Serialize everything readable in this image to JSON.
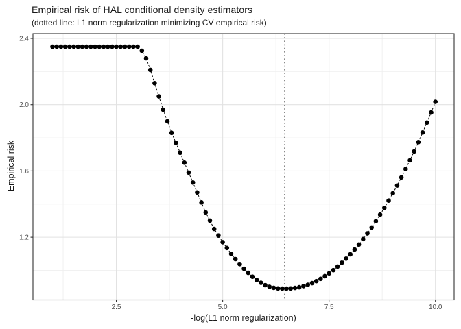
{
  "title": "Empirical risk of HAL conditional density estimators",
  "subtitle": "(dotted line: L1 norm regularization minimizing CV empirical risk)",
  "chart_data": {
    "type": "scatter",
    "title": "Empirical risk of HAL conditional density estimators",
    "subtitle": "(dotted line: L1 norm regularization minimizing CV empirical risk)",
    "xlabel": "-log(L1 norm regularization)",
    "ylabel": "Empirical risk",
    "x_ticks": [
      2.5,
      5.0,
      7.5,
      10.0
    ],
    "x_tick_labels": [
      "2.5",
      "5.0",
      "7.5",
      "10.0"
    ],
    "y_ticks": [
      1.2,
      1.6,
      2.0,
      2.4
    ],
    "y_tick_labels": [
      "1.2",
      "1.6",
      "2.0",
      "2.4"
    ],
    "x_minor_gridlines": [
      1.25,
      3.75,
      6.25,
      8.75
    ],
    "y_minor_gridlines": [
      1.0,
      1.4,
      1.8,
      2.2
    ],
    "xlim": [
      0.54,
      10.44
    ],
    "ylim": [
      0.822,
      2.429
    ],
    "grid": true,
    "legend": "none",
    "vline_x": 6.46,
    "vline_linetype": "dotted",
    "connector_linetype": "dashed",
    "colors": {
      "points": "#000000",
      "connector_line": "#000000",
      "vline": "#111111",
      "grid_major": "#e2e2e2",
      "grid_minor": "#efefef",
      "panel_border": "#333333",
      "tick_mark": "#333333",
      "tick_label": "#4d4d4d",
      "text": "#1a1a1a",
      "background": "#ffffff"
    },
    "series": [
      {
        "name": "empirical_risk",
        "x": [
          1.0,
          1.1,
          1.2,
          1.3,
          1.4,
          1.5,
          1.6,
          1.7,
          1.8,
          1.9,
          2.0,
          2.1,
          2.2,
          2.3,
          2.4,
          2.5,
          2.6,
          2.7,
          2.8,
          2.9,
          3.0,
          3.1,
          3.2,
          3.3,
          3.4,
          3.5,
          3.6,
          3.7,
          3.8,
          3.9,
          4.0,
          4.1,
          4.2,
          4.3,
          4.4,
          4.5,
          4.6,
          4.7,
          4.8,
          4.9,
          5.0,
          5.1,
          5.2,
          5.3,
          5.4,
          5.5,
          5.6,
          5.7,
          5.8,
          5.9,
          6.0,
          6.1,
          6.2,
          6.3,
          6.4,
          6.5,
          6.6,
          6.7,
          6.8,
          6.9,
          7.0,
          7.1,
          7.2,
          7.3,
          7.4,
          7.5,
          7.6,
          7.7,
          7.8,
          7.9,
          8.0,
          8.1,
          8.2,
          8.3,
          8.4,
          8.5,
          8.6,
          8.7,
          8.8,
          8.9,
          9.0,
          9.1,
          9.2,
          9.3,
          9.4,
          9.5,
          9.6,
          9.7,
          9.8,
          9.9,
          10.0
        ],
        "y": [
          2.35,
          2.35,
          2.35,
          2.35,
          2.35,
          2.35,
          2.35,
          2.35,
          2.35,
          2.35,
          2.35,
          2.35,
          2.35,
          2.35,
          2.35,
          2.35,
          2.35,
          2.35,
          2.35,
          2.35,
          2.35,
          2.325,
          2.28,
          2.21,
          2.13,
          2.05,
          1.97,
          1.9,
          1.83,
          1.77,
          1.71,
          1.65,
          1.59,
          1.53,
          1.47,
          1.41,
          1.35,
          1.3,
          1.25,
          1.21,
          1.17,
          1.135,
          1.1,
          1.068,
          1.038,
          1.01,
          0.985,
          0.962,
          0.942,
          0.925,
          0.911,
          0.901,
          0.895,
          0.891,
          0.89,
          0.89,
          0.891,
          0.894,
          0.898,
          0.905,
          0.913,
          0.923,
          0.935,
          0.949,
          0.965,
          0.982,
          1.001,
          1.023,
          1.046,
          1.071,
          1.097,
          1.126,
          1.156,
          1.189,
          1.223,
          1.259,
          1.297,
          1.336,
          1.377,
          1.421,
          1.466,
          1.512,
          1.561,
          1.612,
          1.664,
          1.718,
          1.774,
          1.832,
          1.892,
          1.953,
          2.017
        ]
      }
    ]
  }
}
